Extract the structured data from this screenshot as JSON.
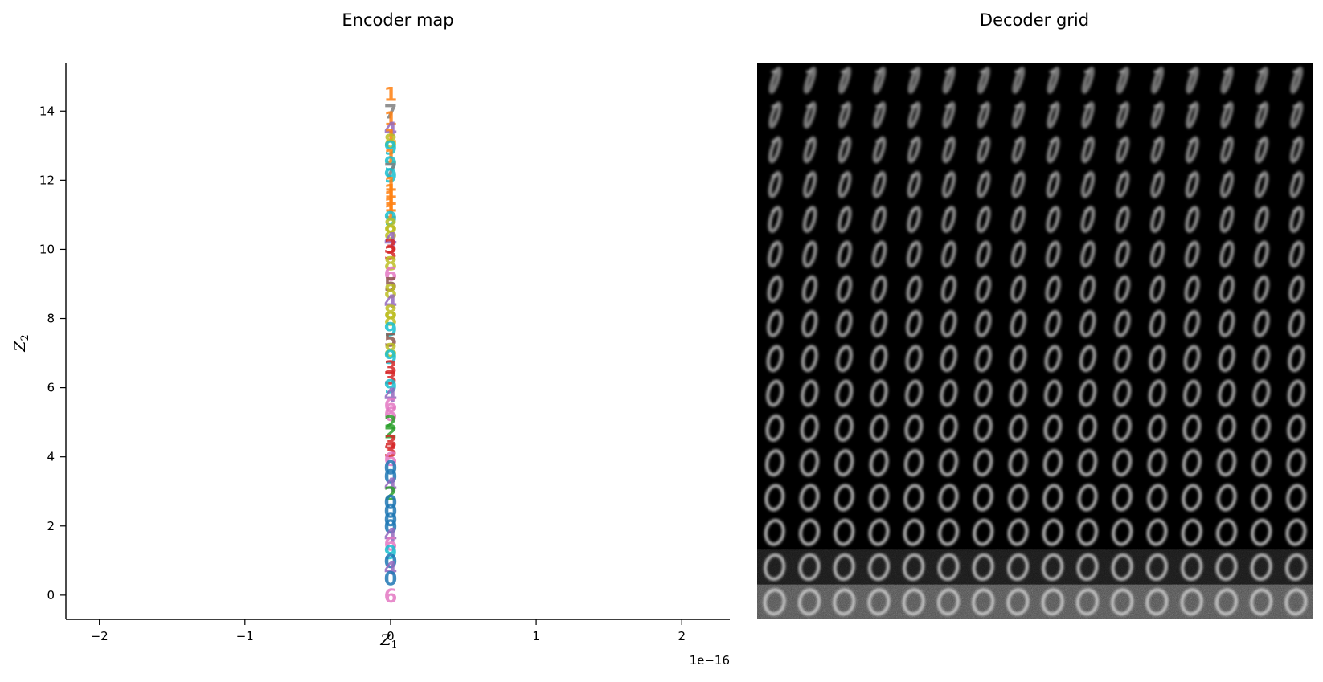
{
  "chart_data": [
    {
      "type": "scatter",
      "title": "Encoder map",
      "xlabel": "Z",
      "xlabel_sub": "1",
      "ylabel": "Z",
      "ylabel_sub": "2",
      "x_scale_label": "1e−16",
      "xlim": [
        -2.23,
        2.33
      ],
      "ylim": [
        -0.7,
        15.4
      ],
      "x_ticks": [
        -2,
        -1,
        0,
        1,
        2
      ],
      "x_tick_labels": [
        "−2",
        "−1",
        "0",
        "1",
        "2"
      ],
      "y_ticks": [
        0,
        2,
        4,
        6,
        8,
        10,
        12,
        14
      ],
      "y_tick_labels": [
        "0",
        "2",
        "4",
        "6",
        "8",
        "10",
        "12",
        "14"
      ],
      "grid": false,
      "digit_colors": {
        "0": "#1f77b4",
        "1": "#ff7f0e",
        "2": "#2ca02c",
        "3": "#d62728",
        "4": "#9467bd",
        "5": "#8c564b",
        "6": "#e377c2",
        "7": "#7f7f7f",
        "8": "#bcbd22",
        "9": "#17becf"
      },
      "points": [
        {
          "x": 0,
          "y": 14.5,
          "label": "1"
        },
        {
          "x": 0,
          "y": 14.0,
          "label": "7"
        },
        {
          "x": 0,
          "y": 13.8,
          "label": "1"
        },
        {
          "x": 0,
          "y": 13.5,
          "label": "4"
        },
        {
          "x": 0,
          "y": 13.3,
          "label": "1"
        },
        {
          "x": 0,
          "y": 13.15,
          "label": "8"
        },
        {
          "x": 0,
          "y": 12.95,
          "label": "9"
        },
        {
          "x": 0,
          "y": 12.7,
          "label": "1"
        },
        {
          "x": 0,
          "y": 12.5,
          "label": "9"
        },
        {
          "x": 0,
          "y": 12.3,
          "label": "7"
        },
        {
          "x": 0,
          "y": 12.15,
          "label": "9"
        },
        {
          "x": 0,
          "y": 11.9,
          "label": "1"
        },
        {
          "x": 0,
          "y": 11.7,
          "label": "1"
        },
        {
          "x": 0,
          "y": 11.5,
          "label": "1"
        },
        {
          "x": 0,
          "y": 11.3,
          "label": "1"
        },
        {
          "x": 0,
          "y": 11.1,
          "label": "1"
        },
        {
          "x": 0,
          "y": 10.9,
          "label": "9"
        },
        {
          "x": 0,
          "y": 10.7,
          "label": "8"
        },
        {
          "x": 0,
          "y": 10.5,
          "label": "8"
        },
        {
          "x": 0,
          "y": 10.3,
          "label": "4"
        },
        {
          "x": 0,
          "y": 10.1,
          "label": "3"
        },
        {
          "x": 0,
          "y": 9.9,
          "label": "3"
        },
        {
          "x": 0,
          "y": 9.6,
          "label": "8"
        },
        {
          "x": 0,
          "y": 9.3,
          "label": "6"
        },
        {
          "x": 0,
          "y": 9.0,
          "label": "5"
        },
        {
          "x": 0,
          "y": 8.8,
          "label": "8"
        },
        {
          "x": 0,
          "y": 8.5,
          "label": "4"
        },
        {
          "x": 0,
          "y": 8.2,
          "label": "8"
        },
        {
          "x": 0,
          "y": 8.0,
          "label": "8"
        },
        {
          "x": 0,
          "y": 7.7,
          "label": "9"
        },
        {
          "x": 0,
          "y": 7.4,
          "label": "5"
        },
        {
          "x": 0,
          "y": 7.1,
          "label": "8"
        },
        {
          "x": 0,
          "y": 6.9,
          "label": "9"
        },
        {
          "x": 0,
          "y": 6.6,
          "label": "3"
        },
        {
          "x": 0,
          "y": 6.3,
          "label": "3"
        },
        {
          "x": 0,
          "y": 6.05,
          "label": "9"
        },
        {
          "x": 0,
          "y": 5.8,
          "label": "4"
        },
        {
          "x": 0,
          "y": 5.5,
          "label": "6"
        },
        {
          "x": 0,
          "y": 5.25,
          "label": "6"
        },
        {
          "x": 0,
          "y": 5.0,
          "label": "2"
        },
        {
          "x": 0,
          "y": 4.75,
          "label": "2"
        },
        {
          "x": 0,
          "y": 4.45,
          "label": "3"
        },
        {
          "x": 0,
          "y": 4.2,
          "label": "3"
        },
        {
          "x": 0,
          "y": 3.95,
          "label": "6"
        },
        {
          "x": 0,
          "y": 3.7,
          "label": "0"
        },
        {
          "x": 0,
          "y": 3.45,
          "label": "0"
        },
        {
          "x": 0,
          "y": 3.2,
          "label": "4"
        },
        {
          "x": 0,
          "y": 2.95,
          "label": "2"
        },
        {
          "x": 0,
          "y": 2.7,
          "label": "0"
        },
        {
          "x": 0,
          "y": 2.45,
          "label": "0"
        },
        {
          "x": 0,
          "y": 2.2,
          "label": "0"
        },
        {
          "x": 0,
          "y": 2.0,
          "label": "0"
        },
        {
          "x": 0,
          "y": 1.75,
          "label": "4"
        },
        {
          "x": 0,
          "y": 1.5,
          "label": "6"
        },
        {
          "x": 0,
          "y": 1.25,
          "label": "9"
        },
        {
          "x": 0,
          "y": 1.0,
          "label": "0"
        },
        {
          "x": 0,
          "y": 0.8,
          "label": "4"
        },
        {
          "x": 0,
          "y": 0.5,
          "label": "0"
        },
        {
          "x": 0,
          "y": 0.0,
          "label": "6"
        }
      ]
    },
    {
      "type": "heatmap",
      "title": "Decoder grid",
      "rows": 16,
      "cols": 16,
      "background": "#000000"
    }
  ]
}
